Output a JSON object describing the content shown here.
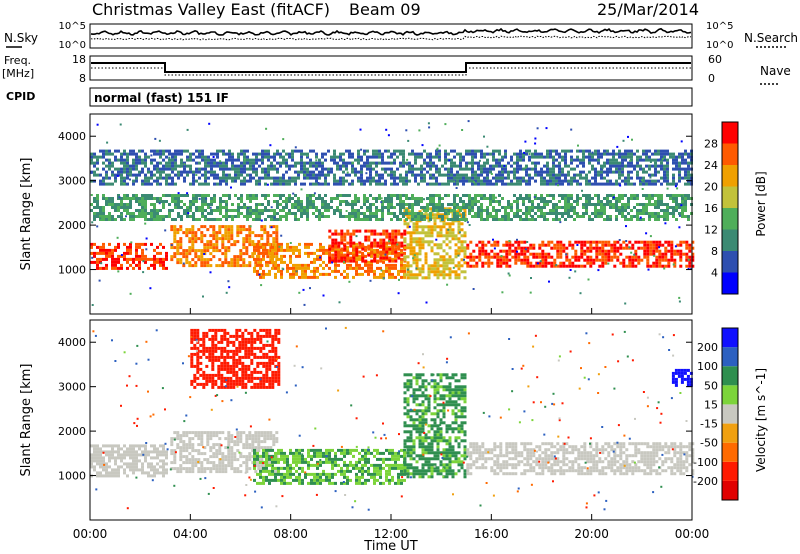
{
  "header": {
    "title": "Christmas Valley East (fitACF)",
    "beam_label": "Beam 09",
    "date": "25/Mar/2014"
  },
  "noise_panel": {
    "left_label": "N.Sky",
    "right_label": "N.Search",
    "left_ticks": [
      "10^5",
      "10^0"
    ],
    "right_ticks": [
      "10^5",
      "10^0"
    ]
  },
  "freq_panel": {
    "left_label_line1": "Freq.",
    "left_label_line2": "[MHz]",
    "right_label": "Nave",
    "left_ticks": [
      "18",
      "8"
    ],
    "right_ticks": [
      "60",
      "0"
    ]
  },
  "cpid_panel": {
    "label": "CPID",
    "value": "normal (fast) 151 IF"
  },
  "colors": {
    "power_scale": [
      "#0000ff",
      "#2e4fb0",
      "#3b8a73",
      "#4fae5a",
      "#c2c23a",
      "#f0a000",
      "#ff5a00",
      "#ff0000"
    ],
    "velocity_scale": [
      "#1010ff",
      "#2c60c0",
      "#2f8f4f",
      "#7cd43a",
      "#c8c8c0",
      "#f0a010",
      "#ff6a00",
      "#ff1a00",
      "#e00000"
    ]
  },
  "chart_data": [
    {
      "type": "heatmap",
      "panel": "power",
      "ylabel": "Slant Range [km]",
      "xlim": [
        "00:00",
        "24:00"
      ],
      "ylim": [
        0,
        4500
      ],
      "y_ticks": [
        "1000",
        "2000",
        "3000",
        "4000"
      ],
      "colorbar": {
        "label": "Power [dB]",
        "ticks": [
          "4",
          "8",
          "12",
          "16",
          "20",
          "24",
          "28"
        ],
        "range": [
          0,
          32
        ]
      },
      "approx_regions": [
        {
          "start_hour": 0.0,
          "end_hour": 3.0,
          "range_km": [
            1000,
            1600
          ],
          "value_db": 28
        },
        {
          "start_hour": 3.2,
          "end_hour": 7.5,
          "range_km": [
            1100,
            2000
          ],
          "value_db": 24
        },
        {
          "start_hour": 6.5,
          "end_hour": 12.5,
          "range_km": [
            800,
            1600
          ],
          "value_db": 24
        },
        {
          "start_hour": 9.5,
          "end_hour": 12.5,
          "range_km": [
            1200,
            1900
          ],
          "value_db": 28
        },
        {
          "start_hour": 12.5,
          "end_hour": 15.0,
          "range_km": [
            800,
            2400
          ],
          "value_db": 20
        },
        {
          "start_hour": 15.0,
          "end_hour": 24.0,
          "range_km": [
            1050,
            1650
          ],
          "value_db": 28
        },
        {
          "start_hour": 0.0,
          "end_hour": 24.0,
          "range_km": [
            2100,
            2700
          ],
          "value_db": 12
        },
        {
          "start_hour": 0.0,
          "end_hour": 24.0,
          "range_km": [
            2900,
            3700
          ],
          "value_db": 8
        }
      ]
    },
    {
      "type": "heatmap",
      "panel": "velocity",
      "ylabel": "Slant Range [km]",
      "xlabel": "Time UT",
      "xlim": [
        "00:00",
        "24:00"
      ],
      "ylim": [
        0,
        4500
      ],
      "x_ticks": [
        "00:00",
        "04:00",
        "08:00",
        "12:00",
        "16:00",
        "20:00",
        "00:00"
      ],
      "y_ticks": [
        "1000",
        "2000",
        "3000",
        "4000"
      ],
      "colorbar": {
        "label": "Velocity [m s^-1]",
        "ticks": [
          "200",
          "100",
          "50",
          "15",
          "-15",
          "-50",
          "-100",
          "-200"
        ],
        "range": [
          -250,
          250
        ]
      },
      "approx_regions": [
        {
          "start_hour": 0.0,
          "end_hour": 3.0,
          "range_km": [
            1000,
            1700
          ],
          "value_ms": 0
        },
        {
          "start_hour": 3.2,
          "end_hour": 7.5,
          "range_km": [
            1100,
            2000
          ],
          "value_ms": 0
        },
        {
          "start_hour": 6.5,
          "end_hour": 12.5,
          "range_km": [
            800,
            1600
          ],
          "value_ms": 30
        },
        {
          "start_hour": 12.5,
          "end_hour": 15.0,
          "range_km": [
            1000,
            3300
          ],
          "value_ms": 40
        },
        {
          "start_hour": 15.0,
          "end_hour": 24.0,
          "range_km": [
            1050,
            1750
          ],
          "value_ms": 0
        },
        {
          "start_hour": 4.0,
          "end_hour": 7.5,
          "range_km": [
            3000,
            4300
          ],
          "value_ms": -100
        },
        {
          "start_hour": 23.2,
          "end_hour": 24.0,
          "range_km": [
            3000,
            3400
          ],
          "value_ms": 200
        }
      ]
    }
  ]
}
